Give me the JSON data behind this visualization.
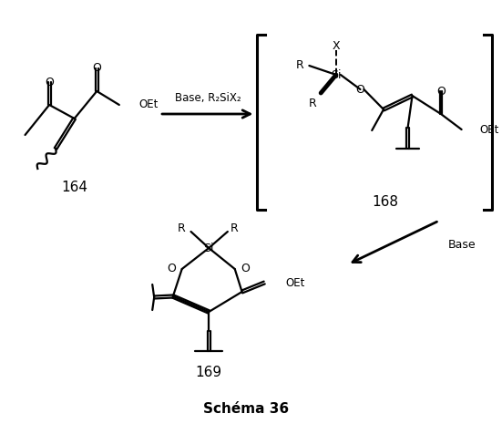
{
  "title": "Schéma 36",
  "label_164": "164",
  "label_168": "168",
  "label_169": "169",
  "arrow_label": "Base, R₂SiX₂",
  "arrow_label2": "Base",
  "background": "#ffffff",
  "line_color": "#000000"
}
